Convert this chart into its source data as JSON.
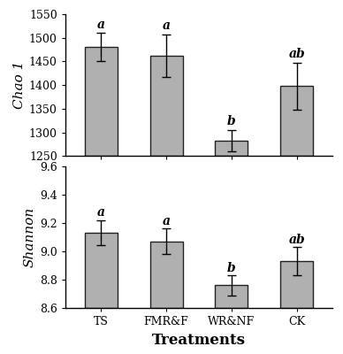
{
  "categories": [
    "TS",
    "FMR&F",
    "WR&NF",
    "CK"
  ],
  "chao1_values": [
    1480,
    1462,
    1283,
    1398
  ],
  "chao1_errors": [
    30,
    45,
    22,
    50
  ],
  "chao1_labels": [
    "a",
    "a",
    "b",
    "ab"
  ],
  "chao1_ylim": [
    1250,
    1550
  ],
  "chao1_yticks": [
    1250,
    1300,
    1350,
    1400,
    1450,
    1500,
    1550
  ],
  "chao1_ylabel": "Chao 1",
  "shannon_values": [
    9.13,
    9.07,
    8.76,
    8.93
  ],
  "shannon_errors": [
    0.09,
    0.09,
    0.07,
    0.1
  ],
  "shannon_labels": [
    "a",
    "a",
    "b",
    "ab"
  ],
  "shannon_ylim": [
    8.6,
    9.6
  ],
  "shannon_yticks": [
    8.6,
    8.8,
    9.0,
    9.2,
    9.4,
    9.6
  ],
  "shannon_ylabel": "Shannon",
  "xlabel": "Treatments",
  "bar_color": "#b0b0b0",
  "bar_edgecolor": "#222222",
  "bar_width": 0.5,
  "background_color": "#ffffff",
  "axis_label_fontsize": 11,
  "tick_fontsize": 9,
  "sig_label_fontsize": 10,
  "xlabel_fontsize": 12
}
